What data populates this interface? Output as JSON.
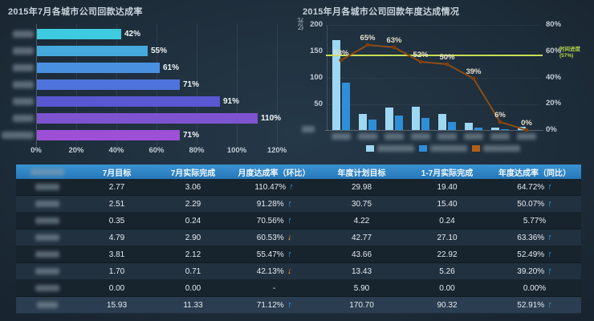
{
  "page": {
    "background": "#1d2c39"
  },
  "chart_data": [
    {
      "id": "july-achievement",
      "type": "bar",
      "orientation": "horizontal",
      "title": "2015年7月各城市公司回款达成率",
      "categories_redacted": true,
      "categories": [
        "",
        "",
        "",
        "",
        "",
        "",
        ""
      ],
      "values": [
        42,
        55,
        61,
        71,
        91,
        110,
        71
      ],
      "value_labels": [
        "42%",
        "55%",
        "61%",
        "71%",
        "91%",
        "110%",
        "71%"
      ],
      "bar_colors": [
        "#3ecadf",
        "#45a9dd",
        "#4a90e0",
        "#4e73dd",
        "#5a57d2",
        "#7e53d0",
        "#9d50d6"
      ],
      "x_ticks": [
        "0%",
        "20%",
        "40%",
        "60%",
        "80%",
        "100%",
        "120%"
      ],
      "xlim": [
        0,
        120
      ],
      "grid": "vertical"
    },
    {
      "id": "annual-achievement",
      "type": "bar+line",
      "title": "2015年月各城市公司回款年度达成情况",
      "y_left_unit": "亿元",
      "y_left_ticks": [
        "200",
        "150",
        "100",
        "50"
      ],
      "y_left_max": 200,
      "y_right_ticks": [
        "80%",
        "60%",
        "40%",
        "20%",
        "0%"
      ],
      "y_right_max": 80,
      "reference_line": {
        "value": 57,
        "label_line1": "时间进度",
        "label_line2": "(57%)",
        "color": "#c9de52"
      },
      "categories_redacted": true,
      "categories": [
        "",
        "",
        "",
        "",
        "",
        "",
        "",
        ""
      ],
      "legend_redacted": true,
      "series": [
        {
          "type": "bar",
          "color": "#9ed7f2",
          "values": [
            170.7,
            29.98,
            42.77,
            43.66,
            30.75,
            13.43,
            4.22,
            5.9
          ]
        },
        {
          "type": "bar",
          "color": "#2e8ed8",
          "values": [
            90.32,
            19.4,
            27.1,
            22.92,
            15.4,
            5.26,
            0.24,
            0.0
          ]
        },
        {
          "type": "line",
          "color": "#8d4c15",
          "values": [
            53,
            65,
            63,
            52,
            50,
            39,
            6,
            0
          ],
          "point_labels": [
            "53%",
            "65%",
            "63%",
            "52%",
            "50%",
            "39%",
            "6%",
            "0%"
          ]
        }
      ]
    }
  ],
  "table": {
    "first_header_redacted": true,
    "headers": [
      "7月目标",
      "7月实际完成",
      "月度达成率（环比）",
      "年度计划目标",
      "1-7月实际完成",
      "年度达成率（同比）"
    ],
    "trend_up_glyph": "↑",
    "trend_down_glyph": "↓",
    "trend_up_color": "#3aa6ea",
    "trend_down_color": "#f0a23e",
    "rows": [
      {
        "name_redacted": true,
        "july_target": "2.77",
        "july_actual": "3.06",
        "month_rate": "110.47%",
        "month_trend": "up",
        "year_target": "29.98",
        "ytd_actual": "19.40",
        "year_rate": "64.72%",
        "year_trend": "up",
        "is_total": false
      },
      {
        "name_redacted": true,
        "july_target": "2.51",
        "july_actual": "2.29",
        "month_rate": "91.28%",
        "month_trend": "up",
        "year_target": "30.75",
        "ytd_actual": "15.40",
        "year_rate": "50.07%",
        "year_trend": "up",
        "is_total": false
      },
      {
        "name_redacted": true,
        "july_target": "0.35",
        "july_actual": "0.24",
        "month_rate": "70.56%",
        "month_trend": "up",
        "year_target": "4.22",
        "ytd_actual": "0.24",
        "year_rate": "5.77%",
        "year_trend": "none",
        "is_total": false
      },
      {
        "name_redacted": true,
        "july_target": "4.79",
        "july_actual": "2.90",
        "month_rate": "60.53%",
        "month_trend": "down",
        "year_target": "42.77",
        "ytd_actual": "27.10",
        "year_rate": "63.36%",
        "year_trend": "up",
        "is_total": false
      },
      {
        "name_redacted": true,
        "july_target": "3.81",
        "july_actual": "2.12",
        "month_rate": "55.47%",
        "month_trend": "up",
        "year_target": "43.66",
        "ytd_actual": "22.92",
        "year_rate": "52.49%",
        "year_trend": "up",
        "is_total": false
      },
      {
        "name_redacted": true,
        "july_target": "1.70",
        "july_actual": "0.71",
        "month_rate": "42.13%",
        "month_trend": "down",
        "year_target": "13.43",
        "ytd_actual": "5.26",
        "year_rate": "39.20%",
        "year_trend": "up",
        "is_total": false
      },
      {
        "name_redacted": true,
        "july_target": "0.00",
        "july_actual": "0.00",
        "month_rate": "-",
        "month_trend": "none",
        "year_target": "5.90",
        "ytd_actual": "0.00",
        "year_rate": "0.00%",
        "year_trend": "none",
        "is_total": false
      },
      {
        "name_redacted": true,
        "july_target": "15.93",
        "july_actual": "11.33",
        "month_rate": "71.12%",
        "month_trend": "up",
        "year_target": "170.70",
        "ytd_actual": "90.32",
        "year_rate": "52.91%",
        "year_trend": "up",
        "is_total": true
      }
    ]
  }
}
